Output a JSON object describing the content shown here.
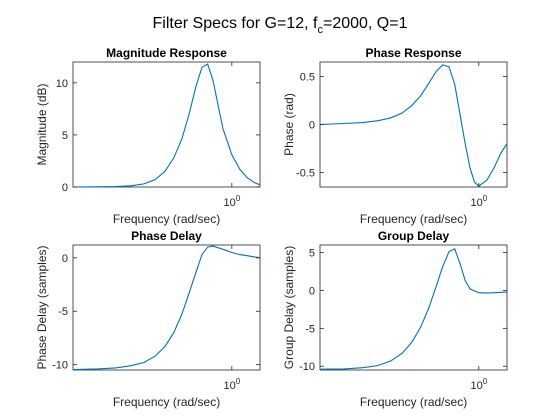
{
  "figure": {
    "title_main": "Filter Specs for G=12, f",
    "title_sub": "c",
    "title_rest": "=2000, Q=1"
  },
  "colors": {
    "line": "#0072BD",
    "axes": "#262626"
  },
  "chart_data": [
    {
      "type": "line",
      "title": "Magnitude Response",
      "xlabel": "Frequency (rad/sec)",
      "ylabel": "Magnitude (dB)",
      "xscale": "log",
      "xlim": [
        0.15,
        1.4
      ],
      "ylim": [
        0,
        12
      ],
      "xtick_value": 1,
      "xtick_label": "10",
      "xtick_exp": "0",
      "yticks": [
        0,
        5,
        10
      ],
      "ytick_labels": [
        "0",
        "5",
        "10"
      ],
      "series": [
        {
          "x": [
            0.15,
            0.2,
            0.25,
            0.3,
            0.35,
            0.4,
            0.45,
            0.5,
            0.55,
            0.6,
            0.65,
            0.7,
            0.75,
            0.8,
            0.85,
            0.9,
            1.0,
            1.1,
            1.2,
            1.3,
            1.4
          ],
          "y": [
            0.0,
            0.02,
            0.05,
            0.12,
            0.3,
            0.7,
            1.5,
            2.8,
            4.6,
            7.0,
            9.6,
            11.5,
            11.8,
            10.2,
            7.8,
            5.6,
            3.1,
            1.7,
            0.9,
            0.45,
            0.2
          ]
        }
      ]
    },
    {
      "type": "line",
      "title": "Phase Response",
      "xlabel": "Frequency (rad/sec)",
      "ylabel": "Phase (rad)",
      "xscale": "log",
      "xlim": [
        0.15,
        1.4
      ],
      "ylim": [
        -0.65,
        0.65
      ],
      "xtick_value": 1,
      "xtick_label": "10",
      "xtick_exp": "0",
      "yticks": [
        -0.5,
        0,
        0.5
      ],
      "ytick_labels": [
        "-0.5",
        "0",
        "0.5"
      ],
      "series": [
        {
          "x": [
            0.15,
            0.2,
            0.25,
            0.3,
            0.35,
            0.4,
            0.45,
            0.5,
            0.55,
            0.6,
            0.65,
            0.7,
            0.75,
            0.8,
            0.85,
            0.9,
            0.95,
            1.0,
            1.1,
            1.2,
            1.3,
            1.4
          ],
          "y": [
            0.0,
            0.01,
            0.02,
            0.04,
            0.07,
            0.12,
            0.2,
            0.3,
            0.43,
            0.55,
            0.62,
            0.6,
            0.42,
            0.1,
            -0.2,
            -0.45,
            -0.6,
            -0.64,
            -0.58,
            -0.45,
            -0.3,
            -0.2
          ]
        }
      ]
    },
    {
      "type": "line",
      "title": "Phase Delay",
      "xlabel": "Frequency (rad/sec)",
      "ylabel": "Phase Delay (samples)",
      "xscale": "log",
      "xlim": [
        0.15,
        1.4
      ],
      "ylim": [
        -10.5,
        1.2
      ],
      "xtick_value": 1,
      "xtick_label": "10",
      "xtick_exp": "0",
      "yticks": [
        -10,
        -5,
        0
      ],
      "ytick_labels": [
        "-10",
        "-5",
        "0"
      ],
      "series": [
        {
          "x": [
            0.15,
            0.2,
            0.25,
            0.3,
            0.35,
            0.4,
            0.45,
            0.5,
            0.55,
            0.6,
            0.65,
            0.7,
            0.75,
            0.8,
            0.9,
            1.0,
            1.1,
            1.2,
            1.3,
            1.4
          ],
          "y": [
            -10.45,
            -10.4,
            -10.3,
            -10.1,
            -9.8,
            -9.2,
            -8.3,
            -7.0,
            -5.3,
            -3.3,
            -1.4,
            0.3,
            1.0,
            1.1,
            0.8,
            0.5,
            0.3,
            0.2,
            0.1,
            0.0
          ]
        }
      ]
    },
    {
      "type": "line",
      "title": "Group Delay",
      "xlabel": "Frequency (rad/sec)",
      "ylabel": "Group Delay (samples)",
      "xscale": "log",
      "xlim": [
        0.15,
        1.4
      ],
      "ylim": [
        -10.5,
        6
      ],
      "xtick_value": 1,
      "xtick_label": "10",
      "xtick_exp": "0",
      "yticks": [
        -10,
        -5,
        0,
        5
      ],
      "ytick_labels": [
        "-10",
        "-5",
        "0",
        "5"
      ],
      "series": [
        {
          "x": [
            0.15,
            0.2,
            0.25,
            0.3,
            0.35,
            0.4,
            0.45,
            0.5,
            0.55,
            0.6,
            0.65,
            0.7,
            0.75,
            0.8,
            0.85,
            0.9,
            1.0,
            1.1,
            1.2,
            1.3,
            1.4
          ],
          "y": [
            -10.4,
            -10.35,
            -10.2,
            -9.9,
            -9.3,
            -8.3,
            -6.8,
            -4.8,
            -2.3,
            0.5,
            3.2,
            5.1,
            5.5,
            3.5,
            1.3,
            0.2,
            -0.3,
            -0.35,
            -0.3,
            -0.25,
            -0.2
          ]
        }
      ]
    }
  ]
}
